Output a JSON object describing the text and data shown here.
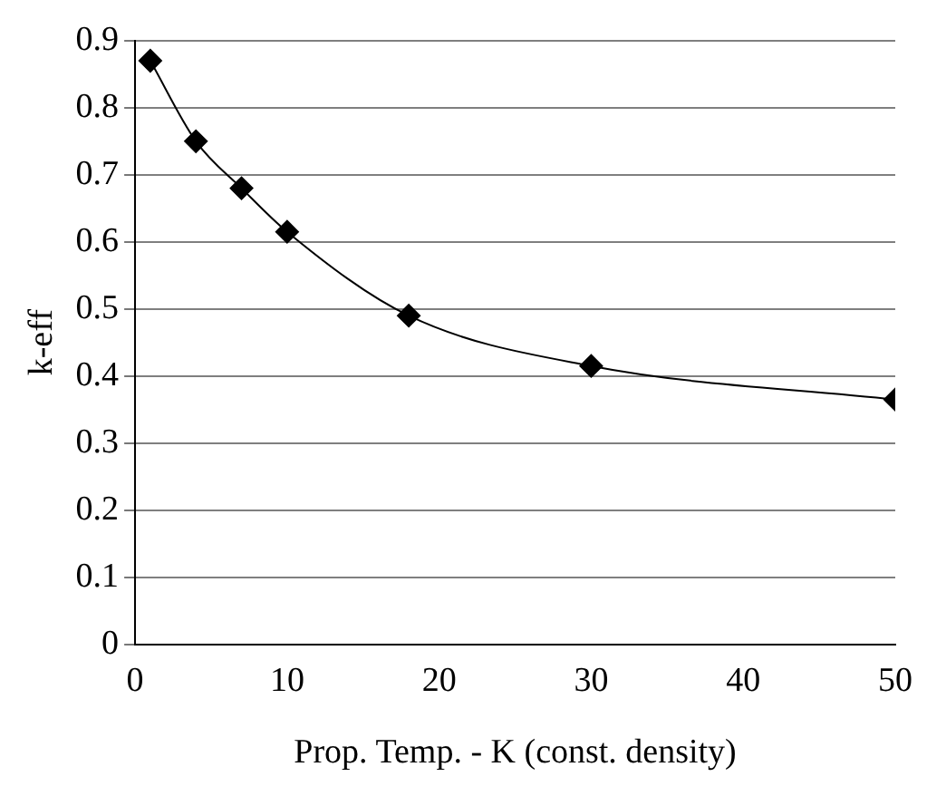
{
  "chart_data": {
    "type": "line",
    "xlabel": "Prop. Temp. - K (const. density)",
    "ylabel": "k-eff",
    "x": [
      1,
      4,
      7,
      10,
      18,
      30,
      50
    ],
    "series": [
      {
        "color": "#000000",
        "values": [
          0.87,
          0.75,
          0.68,
          0.615,
          0.49,
          0.415,
          0.365
        ]
      }
    ],
    "xlim": [
      0,
      50
    ],
    "xticks": [
      0,
      10,
      20,
      30,
      40,
      50
    ],
    "ylim": [
      0,
      0.9
    ],
    "yticks": [
      0,
      0.1,
      0.2,
      0.3,
      0.4,
      0.5,
      0.6,
      0.7,
      0.8,
      0.9
    ],
    "grid": "y",
    "legend": false,
    "marker": "diamond",
    "line_style": "solid"
  }
}
